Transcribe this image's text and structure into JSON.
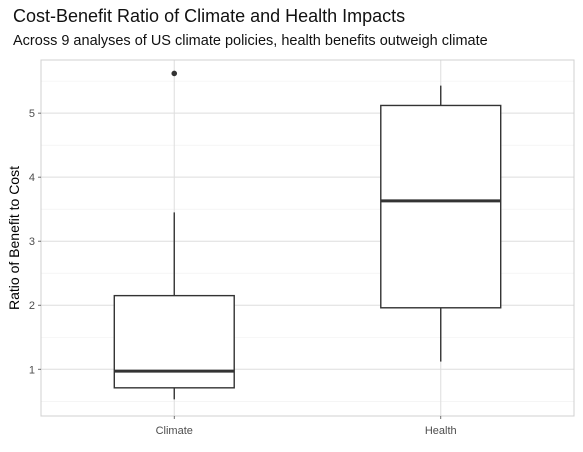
{
  "chart_data": {
    "type": "boxplot",
    "title": "Cost-Benefit Ratio of Climate and Health Impacts",
    "subtitle": "Across 9 analyses of US climate policies, health benefits outweigh climate",
    "xlabel": "",
    "ylabel": "Ratio of Benefit to Cost",
    "ylim": [
      0.27,
      5.83
    ],
    "y_ticks": [
      1,
      2,
      3,
      4,
      5
    ],
    "y_tick_labels": [
      "1",
      "2",
      "3",
      "4",
      "5"
    ],
    "grid": true,
    "categories": [
      "Climate",
      "Health"
    ],
    "boxes": [
      {
        "category": "Climate",
        "whisker_low": 0.53,
        "q1": 0.71,
        "median": 0.97,
        "q3": 2.15,
        "whisker_high": 3.45,
        "outliers": [
          5.62
        ]
      },
      {
        "category": "Health",
        "whisker_low": 1.12,
        "q1": 1.96,
        "median": 3.63,
        "q3": 5.12,
        "whisker_high": 5.43,
        "outliers": []
      }
    ],
    "colors": {
      "background": "#ffffff",
      "grid_major": "#dedede",
      "grid_minor": "#efefef",
      "box_line": "#333333",
      "panel_border": "#d0d0d0"
    }
  }
}
